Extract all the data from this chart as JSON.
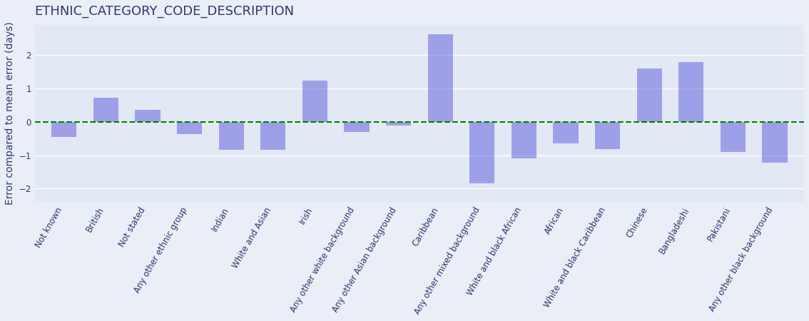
{
  "title": "ETHNIC_CATEGORY_CODE_DESCRIPTION",
  "ylabel": "Error compared to mean error (days)",
  "categories": [
    "Not known",
    "British",
    "Not stated",
    "Any other ethnic group",
    "Indian",
    "White and Asian",
    "Irish",
    "Any other white background",
    "Any other Asian background",
    "Caribbean",
    "Any other mixed background",
    "White and black African",
    "African",
    "White and black Caribbean",
    "Chinese",
    "Bangladeshi",
    "Pakistani",
    "Any other black background"
  ],
  "values": [
    -0.45,
    0.72,
    0.35,
    -0.38,
    -0.85,
    -0.85,
    1.22,
    -0.3,
    -0.12,
    2.62,
    -1.85,
    -1.1,
    -0.65,
    -0.82,
    1.6,
    1.78,
    -0.9,
    -1.22
  ],
  "bar_color": "#6666dd",
  "bar_alpha": 0.55,
  "plot_bg_color": "#e2e8f4",
  "fig_bg_color": "#eaeef7",
  "title_color": "#2a3a6b",
  "ylabel_color": "#2a3a6b",
  "tick_color": "#2a3a6b",
  "grid_color": "#ffffff",
  "dashed_line_color": "green",
  "ylim": [
    -2.4,
    2.9
  ],
  "yticks": [
    -2,
    -1,
    0,
    1,
    2
  ],
  "title_fontsize": 13,
  "ylabel_fontsize": 10,
  "tick_fontsize": 8.5,
  "title_fontweight": "normal"
}
